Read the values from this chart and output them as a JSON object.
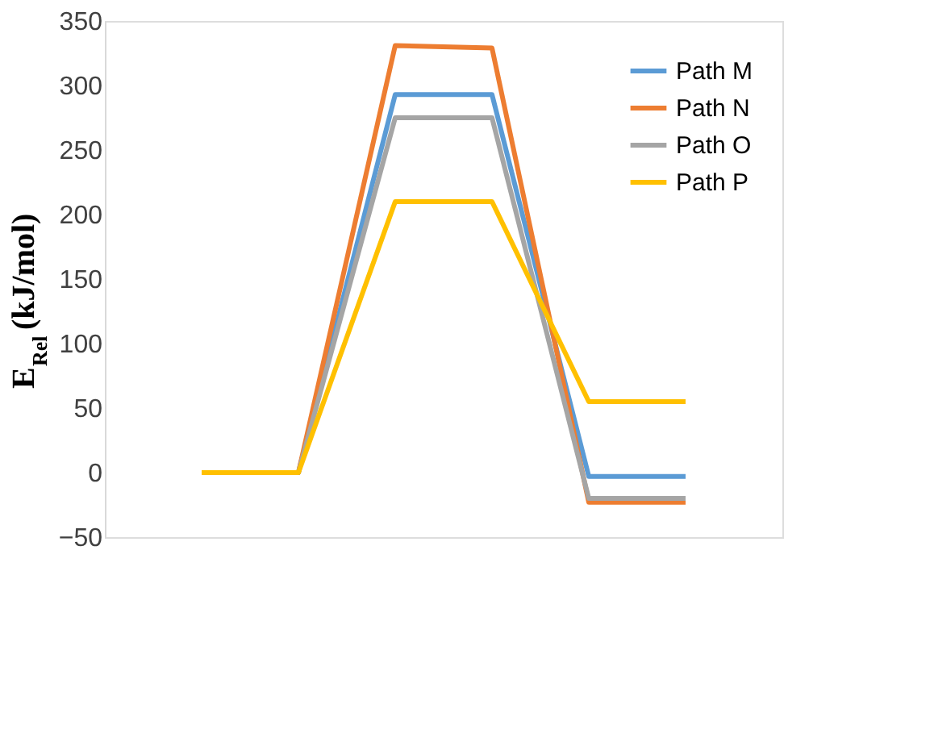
{
  "chart_data": {
    "type": "line",
    "ylabel": "E$_{Rel}$ (kJ/mol)",
    "categories": [
      null,
      null,
      null,
      null,
      null,
      null
    ],
    "series": [
      {
        "name": "Path M",
        "color": "#5b9bd5",
        "values": [
          0,
          0,
          293,
          293,
          -3,
          -3
        ]
      },
      {
        "name": "Path N",
        "color": "#ed7d31",
        "values": [
          0,
          0,
          331,
          329,
          -23,
          -23
        ]
      },
      {
        "name": "Path O",
        "color": "#a5a5a5",
        "values": [
          0,
          0,
          275,
          275,
          -20,
          -20
        ]
      },
      {
        "name": "Path P",
        "color": "#ffc000",
        "values": [
          0,
          0,
          210,
          210,
          55,
          55
        ]
      }
    ],
    "ylim": [
      -50,
      350
    ],
    "yticks": [
      -50,
      0,
      50,
      100,
      150,
      200,
      250,
      300,
      350
    ],
    "grid": false,
    "legend": "top right",
    "marker": "none",
    "line_style": "solid"
  }
}
